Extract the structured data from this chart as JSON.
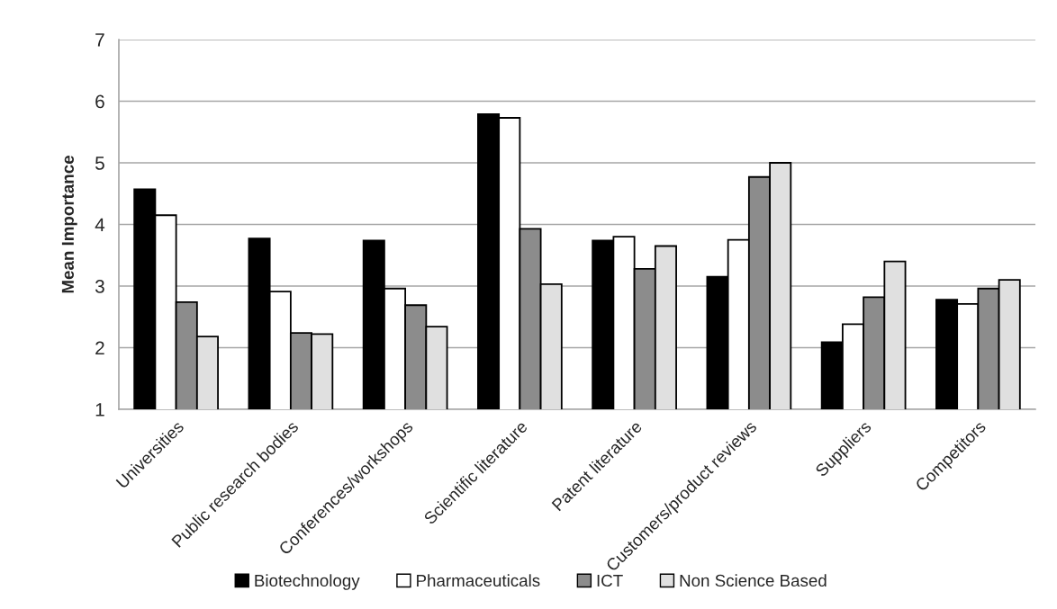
{
  "chart_data": {
    "type": "bar",
    "categories": [
      "Universities",
      "Public research bodies",
      "Conferences/workshops",
      "Scientific literature",
      "Patent literature",
      "Customers/product reviews",
      "Suppliers",
      "Competitors"
    ],
    "series": [
      {
        "name": "Biotechnology",
        "color": "#000000",
        "values": [
          4.57,
          3.77,
          3.74,
          5.79,
          3.74,
          3.15,
          2.09,
          2.78
        ]
      },
      {
        "name": "Pharmaceuticals",
        "color": "#ffffff",
        "values": [
          4.15,
          2.91,
          2.96,
          5.73,
          3.8,
          3.75,
          2.38,
          2.71
        ]
      },
      {
        "name": "ICT",
        "color": "#8c8c8c",
        "values": [
          2.74,
          2.24,
          2.69,
          3.93,
          3.28,
          4.77,
          2.82,
          2.96
        ]
      },
      {
        "name": "Non Science Based",
        "color": "#e0e0e0",
        "values": [
          2.18,
          2.22,
          2.34,
          3.03,
          3.65,
          5.0,
          3.4,
          3.1
        ]
      }
    ],
    "ylabel": "Mean Importance",
    "ylim": [
      1,
      7
    ],
    "yticks": [
      1,
      2,
      3,
      4,
      5,
      6,
      7
    ],
    "grid": "y",
    "legend": "bottom"
  }
}
